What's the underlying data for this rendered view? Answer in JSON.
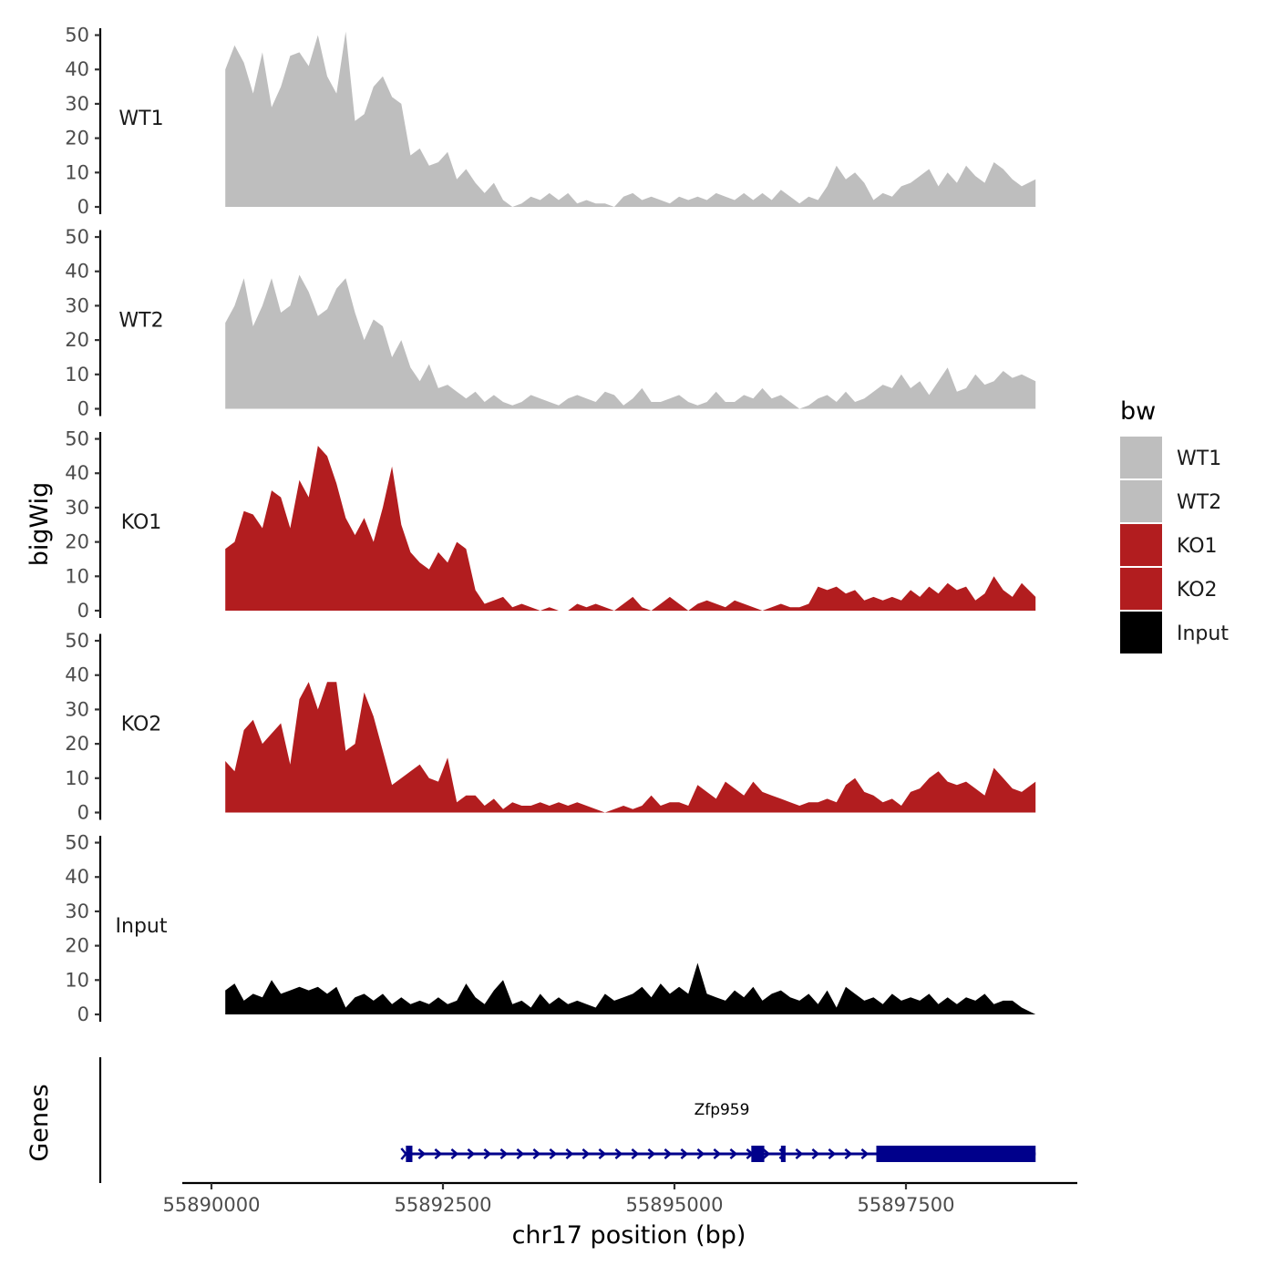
{
  "chart_data": {
    "type": "area",
    "y_axis_title": "bigWig",
    "x_axis_title": "chr17 position (bp)",
    "genes_axis_title": "Genes",
    "x_range": [
      55889800,
      55899600
    ],
    "y_range": [
      0,
      52
    ],
    "y_ticks": [
      0,
      10,
      20,
      30,
      40,
      50
    ],
    "x_ticks": [
      55890000,
      55892500,
      55895000,
      55897500
    ],
    "x_tick_labels": [
      "55890000",
      "55892500",
      "55895000",
      "55897500"
    ],
    "colors": {
      "WT": "#bebebe",
      "KO": "#b21d1f",
      "Input": "#000000",
      "gene": "#00008b"
    },
    "tracks": [
      {
        "name": "WT1",
        "color": "#bebebe",
        "x": [
          55890150,
          55890250,
          55890350,
          55890450,
          55890550,
          55890650,
          55890750,
          55890850,
          55890950,
          55891050,
          55891150,
          55891250,
          55891350,
          55891450,
          55891550,
          55891650,
          55891750,
          55891850,
          55891950,
          55892050,
          55892150,
          55892250,
          55892350,
          55892450,
          55892550,
          55892650,
          55892750,
          55892850,
          55892950,
          55893050,
          55893150,
          55893250,
          55893350,
          55893450,
          55893550,
          55893650,
          55893750,
          55893850,
          55893950,
          55894050,
          55894150,
          55894250,
          55894350,
          55894450,
          55894550,
          55894650,
          55894750,
          55894850,
          55894950,
          55895050,
          55895150,
          55895250,
          55895350,
          55895450,
          55895550,
          55895650,
          55895750,
          55895850,
          55895950,
          55896050,
          55896150,
          55896250,
          55896350,
          55896450,
          55896550,
          55896650,
          55896750,
          55896850,
          55896950,
          55897050,
          55897150,
          55897250,
          55897350,
          55897450,
          55897550,
          55897650,
          55897750,
          55897850,
          55897950,
          55898050,
          55898150,
          55898250,
          55898350,
          55898450,
          55898550,
          55898650,
          55898750,
          55898900
        ],
        "values": [
          40,
          47,
          42,
          33,
          45,
          29,
          35,
          44,
          45,
          41,
          50,
          38,
          33,
          51,
          25,
          27,
          35,
          38,
          32,
          30,
          15,
          17,
          12,
          13,
          16,
          8,
          11,
          7,
          4,
          7,
          2,
          0,
          1,
          3,
          2,
          4,
          2,
          4,
          1,
          2,
          1,
          1,
          0,
          3,
          4,
          2,
          3,
          2,
          1,
          3,
          2,
          3,
          2,
          4,
          3,
          2,
          4,
          2,
          4,
          2,
          5,
          3,
          1,
          3,
          2,
          6,
          12,
          8,
          10,
          7,
          2,
          4,
          3,
          6,
          7,
          9,
          11,
          6,
          10,
          7,
          12,
          9,
          7,
          13,
          11,
          8,
          6,
          8
        ]
      },
      {
        "name": "WT2",
        "color": "#bebebe",
        "x": [
          55890150,
          55890250,
          55890350,
          55890450,
          55890550,
          55890650,
          55890750,
          55890850,
          55890950,
          55891050,
          55891150,
          55891250,
          55891350,
          55891450,
          55891550,
          55891650,
          55891750,
          55891850,
          55891950,
          55892050,
          55892150,
          55892250,
          55892350,
          55892450,
          55892550,
          55892650,
          55892750,
          55892850,
          55892950,
          55893050,
          55893150,
          55893250,
          55893350,
          55893450,
          55893550,
          55893650,
          55893750,
          55893850,
          55893950,
          55894050,
          55894150,
          55894250,
          55894350,
          55894450,
          55894550,
          55894650,
          55894750,
          55894850,
          55894950,
          55895050,
          55895150,
          55895250,
          55895350,
          55895450,
          55895550,
          55895650,
          55895750,
          55895850,
          55895950,
          55896050,
          55896150,
          55896250,
          55896350,
          55896450,
          55896550,
          55896650,
          55896750,
          55896850,
          55896950,
          55897050,
          55897150,
          55897250,
          55897350,
          55897450,
          55897550,
          55897650,
          55897750,
          55897850,
          55897950,
          55898050,
          55898150,
          55898250,
          55898350,
          55898450,
          55898550,
          55898650,
          55898750,
          55898900
        ],
        "values": [
          25,
          30,
          38,
          24,
          30,
          38,
          28,
          30,
          39,
          34,
          27,
          29,
          35,
          38,
          28,
          20,
          26,
          24,
          15,
          20,
          12,
          8,
          13,
          6,
          7,
          5,
          3,
          5,
          2,
          4,
          2,
          1,
          2,
          4,
          3,
          2,
          1,
          3,
          4,
          3,
          2,
          5,
          4,
          1,
          3,
          6,
          2,
          2,
          3,
          4,
          2,
          1,
          2,
          5,
          2,
          2,
          4,
          3,
          6,
          3,
          4,
          2,
          0,
          1,
          3,
          4,
          2,
          5,
          2,
          3,
          5,
          7,
          6,
          10,
          6,
          8,
          4,
          8,
          12,
          5,
          6,
          10,
          7,
          8,
          11,
          9,
          10,
          8
        ]
      },
      {
        "name": "KO1",
        "color": "#b21d1f",
        "x": [
          55890150,
          55890250,
          55890350,
          55890450,
          55890550,
          55890650,
          55890750,
          55890850,
          55890950,
          55891050,
          55891150,
          55891250,
          55891350,
          55891450,
          55891550,
          55891650,
          55891750,
          55891850,
          55891950,
          55892050,
          55892150,
          55892250,
          55892350,
          55892450,
          55892550,
          55892650,
          55892750,
          55892850,
          55892950,
          55893050,
          55893150,
          55893250,
          55893350,
          55893450,
          55893550,
          55893650,
          55893750,
          55893850,
          55893950,
          55894050,
          55894150,
          55894250,
          55894350,
          55894450,
          55894550,
          55894650,
          55894750,
          55894850,
          55894950,
          55895050,
          55895150,
          55895250,
          55895350,
          55895450,
          55895550,
          55895650,
          55895750,
          55895850,
          55895950,
          55896050,
          55896150,
          55896250,
          55896350,
          55896450,
          55896550,
          55896650,
          55896750,
          55896850,
          55896950,
          55897050,
          55897150,
          55897250,
          55897350,
          55897450,
          55897550,
          55897650,
          55897750,
          55897850,
          55897950,
          55898050,
          55898150,
          55898250,
          55898350,
          55898450,
          55898550,
          55898650,
          55898750,
          55898900
        ],
        "values": [
          18,
          20,
          29,
          28,
          24,
          35,
          33,
          24,
          38,
          33,
          48,
          45,
          37,
          27,
          22,
          27,
          20,
          30,
          42,
          25,
          17,
          14,
          12,
          17,
          14,
          20,
          18,
          6,
          2,
          3,
          4,
          1,
          2,
          1,
          0,
          1,
          0,
          0,
          2,
          1,
          2,
          1,
          0,
          2,
          4,
          1,
          0,
          2,
          4,
          2,
          0,
          2,
          3,
          2,
          1,
          3,
          2,
          1,
          0,
          1,
          2,
          1,
          1,
          2,
          7,
          6,
          7,
          5,
          6,
          3,
          4,
          3,
          4,
          3,
          6,
          4,
          7,
          5,
          8,
          6,
          7,
          3,
          5,
          10,
          6,
          4,
          8,
          4
        ]
      },
      {
        "name": "KO2",
        "color": "#b21d1f",
        "x": [
          55890150,
          55890250,
          55890350,
          55890450,
          55890550,
          55890650,
          55890750,
          55890850,
          55890950,
          55891050,
          55891150,
          55891250,
          55891350,
          55891450,
          55891550,
          55891650,
          55891750,
          55891850,
          55891950,
          55892050,
          55892150,
          55892250,
          55892350,
          55892450,
          55892550,
          55892650,
          55892750,
          55892850,
          55892950,
          55893050,
          55893150,
          55893250,
          55893350,
          55893450,
          55893550,
          55893650,
          55893750,
          55893850,
          55893950,
          55894050,
          55894150,
          55894250,
          55894350,
          55894450,
          55894550,
          55894650,
          55894750,
          55894850,
          55894950,
          55895050,
          55895150,
          55895250,
          55895350,
          55895450,
          55895550,
          55895650,
          55895750,
          55895850,
          55895950,
          55896050,
          55896150,
          55896250,
          55896350,
          55896450,
          55896550,
          55896650,
          55896750,
          55896850,
          55896950,
          55897050,
          55897150,
          55897250,
          55897350,
          55897450,
          55897550,
          55897650,
          55897750,
          55897850,
          55897950,
          55898050,
          55898150,
          55898250,
          55898350,
          55898450,
          55898550,
          55898650,
          55898750,
          55898900
        ],
        "values": [
          15,
          12,
          24,
          27,
          20,
          23,
          26,
          14,
          33,
          38,
          30,
          38,
          38,
          18,
          20,
          35,
          28,
          18,
          8,
          10,
          12,
          14,
          10,
          9,
          16,
          3,
          5,
          5,
          2,
          4,
          1,
          3,
          2,
          2,
          3,
          2,
          3,
          2,
          3,
          2,
          1,
          0,
          1,
          2,
          1,
          2,
          5,
          2,
          3,
          3,
          2,
          8,
          6,
          4,
          9,
          7,
          5,
          9,
          6,
          5,
          4,
          3,
          2,
          3,
          3,
          4,
          3,
          8,
          10,
          6,
          5,
          3,
          4,
          2,
          6,
          7,
          10,
          12,
          9,
          8,
          9,
          7,
          5,
          13,
          10,
          7,
          6,
          9
        ]
      },
      {
        "name": "Input",
        "color": "#000000",
        "x": [
          55890150,
          55890250,
          55890350,
          55890450,
          55890550,
          55890650,
          55890750,
          55890850,
          55890950,
          55891050,
          55891150,
          55891250,
          55891350,
          55891450,
          55891550,
          55891650,
          55891750,
          55891850,
          55891950,
          55892050,
          55892150,
          55892250,
          55892350,
          55892450,
          55892550,
          55892650,
          55892750,
          55892850,
          55892950,
          55893050,
          55893150,
          55893250,
          55893350,
          55893450,
          55893550,
          55893650,
          55893750,
          55893850,
          55893950,
          55894050,
          55894150,
          55894250,
          55894350,
          55894450,
          55894550,
          55894650,
          55894750,
          55894850,
          55894950,
          55895050,
          55895150,
          55895250,
          55895350,
          55895450,
          55895550,
          55895650,
          55895750,
          55895850,
          55895950,
          55896050,
          55896150,
          55896250,
          55896350,
          55896450,
          55896550,
          55896650,
          55896750,
          55896850,
          55896950,
          55897050,
          55897150,
          55897250,
          55897350,
          55897450,
          55897550,
          55897650,
          55897750,
          55897850,
          55897950,
          55898050,
          55898150,
          55898250,
          55898350,
          55898450,
          55898550,
          55898650,
          55898750,
          55898900
        ],
        "values": [
          7,
          9,
          4,
          6,
          5,
          10,
          6,
          7,
          8,
          7,
          8,
          6,
          8,
          2,
          5,
          6,
          4,
          6,
          3,
          5,
          3,
          4,
          3,
          5,
          3,
          4,
          9,
          5,
          3,
          7,
          10,
          3,
          4,
          2,
          6,
          3,
          5,
          3,
          4,
          3,
          2,
          6,
          4,
          5,
          6,
          8,
          5,
          9,
          6,
          8,
          6,
          15,
          6,
          5,
          4,
          7,
          5,
          8,
          4,
          6,
          7,
          5,
          4,
          6,
          3,
          7,
          2,
          8,
          6,
          4,
          5,
          3,
          6,
          4,
          5,
          4,
          6,
          3,
          5,
          3,
          5,
          4,
          6,
          3,
          4,
          4,
          2,
          0
        ]
      }
    ],
    "genes": [
      {
        "name": "Zfp959",
        "strand": "+",
        "start": 55892100,
        "end": 55898900,
        "exons": [
          {
            "start": 55892100,
            "end": 55892170
          },
          {
            "start": 55895830,
            "end": 55895970
          },
          {
            "start": 55896150,
            "end": 55896200
          },
          {
            "start": 55897180,
            "end": 55898900
          }
        ]
      }
    ],
    "legend": {
      "title": "bw",
      "entries": [
        {
          "label": "WT1",
          "color": "#bebebe"
        },
        {
          "label": "WT2",
          "color": "#bebebe"
        },
        {
          "label": "KO1",
          "color": "#b21d1f"
        },
        {
          "label": "KO2",
          "color": "#b21d1f"
        },
        {
          "label": "Input",
          "color": "#000000"
        }
      ]
    }
  }
}
